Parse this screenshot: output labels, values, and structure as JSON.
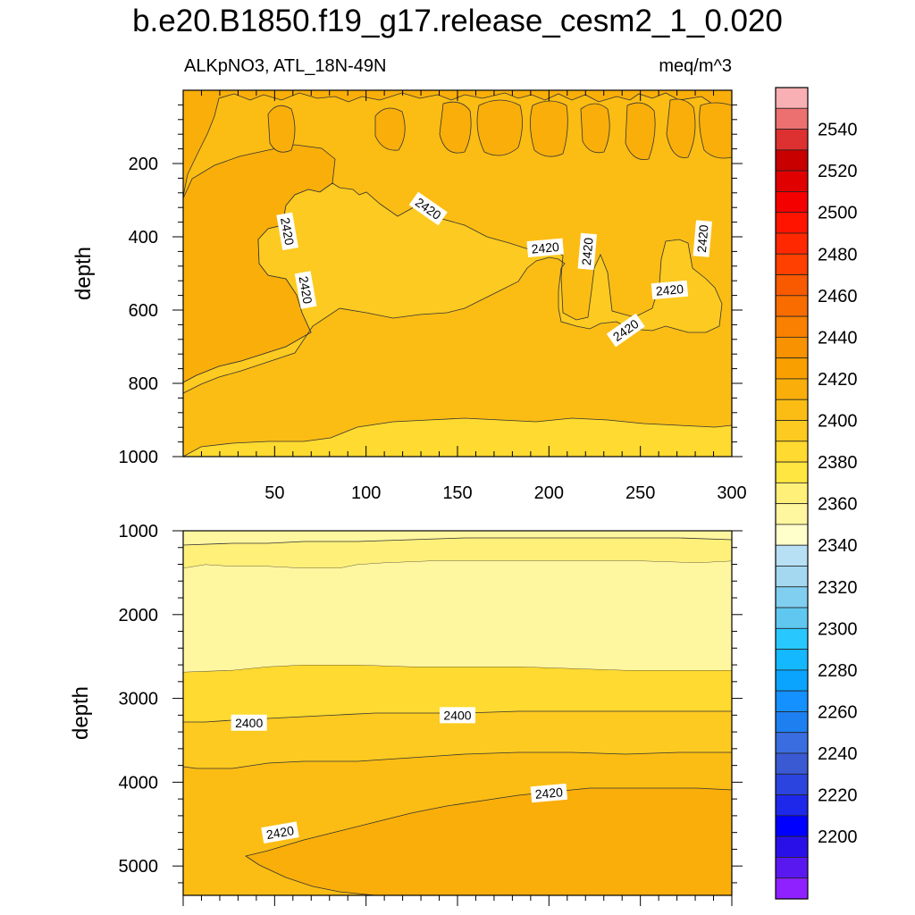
{
  "figure_title": "b.e20.B1850.f19_g17.release_cesm2_1_0.020",
  "left_string": "ALKpNO3, ATL_18N-49N",
  "right_string": "meq/m^3",
  "chart_data": [
    {
      "type": "contour",
      "panel": "upper",
      "ylabel": "depth",
      "xlabel": "",
      "xlim": [
        0,
        300
      ],
      "ylim": [
        1000,
        0
      ],
      "x_ticks": [
        50,
        100,
        150,
        200,
        250,
        300
      ],
      "y_ticks": [
        200,
        400,
        600,
        800,
        1000
      ],
      "field_range": [
        2400,
        2440
      ],
      "contour_labels": [
        {
          "text": "2420",
          "x": 57,
          "y": 385,
          "angle": 80
        },
        {
          "text": "2420",
          "x": 67,
          "y": 545,
          "angle": 80
        },
        {
          "text": "2420",
          "x": 134,
          "y": 323,
          "angle": 35
        },
        {
          "text": "2420",
          "x": 198,
          "y": 430,
          "angle": -5
        },
        {
          "text": "2420",
          "x": 221,
          "y": 440,
          "angle": -85
        },
        {
          "text": "2420",
          "x": 284,
          "y": 405,
          "angle": -85
        },
        {
          "text": "2420",
          "x": 266,
          "y": 545,
          "angle": -5
        },
        {
          "text": "2420",
          "x": 242,
          "y": 655,
          "angle": -35
        }
      ]
    },
    {
      "type": "contour",
      "panel": "lower",
      "ylabel": "depth",
      "xlabel": "",
      "xlim": [
        0,
        300
      ],
      "ylim": [
        5350,
        1000
      ],
      "y_ticks": [
        1000,
        2000,
        3000,
        4000,
        5000
      ],
      "field_range": [
        2380,
        2430
      ],
      "contour_labels": [
        {
          "text": "2400",
          "x": 36,
          "y": 3290,
          "angle": 0
        },
        {
          "text": "2400",
          "x": 150,
          "y": 3200,
          "angle": 0
        },
        {
          "text": "2420",
          "x": 200,
          "y": 4130,
          "angle": -5
        },
        {
          "text": "2420",
          "x": 53,
          "y": 4600,
          "angle": -10
        }
      ]
    }
  ],
  "colorbar": {
    "labels": [
      "2200",
      "2220",
      "2240",
      "2260",
      "2280",
      "2300",
      "2320",
      "2340",
      "2360",
      "2380",
      "2400",
      "2420",
      "2440",
      "2460",
      "2480",
      "2500",
      "2520",
      "2540"
    ],
    "colors": [
      "#8f20ff",
      "#5a18f0",
      "#2a10e8",
      "#0000ff",
      "#1e28ea",
      "#2c44df",
      "#3a5ad4",
      "#3a6ee0",
      "#1e80f0",
      "#1490ff",
      "#0aa4ff",
      "#14b8ff",
      "#28c8ff",
      "#60c8f0",
      "#80cef0",
      "#a4d8f0",
      "#b8e0f4",
      "#ffffcc",
      "#fff6a0",
      "#fff07a",
      "#ffe640",
      "#ffda30",
      "#fcca20",
      "#fbbd14",
      "#f9ae0a",
      "#f9a000",
      "#f99200",
      "#f98000",
      "#f96c00",
      "#f95a00",
      "#ff4000",
      "#ff2800",
      "#ff1400",
      "#f50000",
      "#e00000",
      "#c80000",
      "#dd3030",
      "#ec7070",
      "#f8b0b4"
    ]
  }
}
